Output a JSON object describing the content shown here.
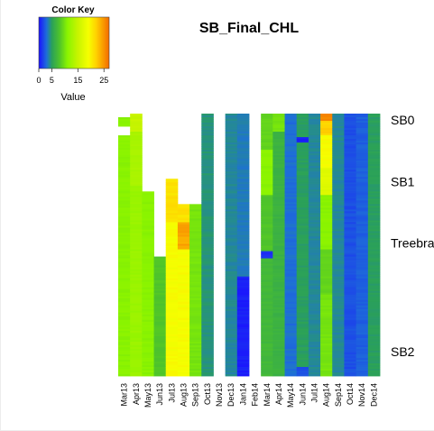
{
  "chart_data": {
    "type": "heatmap",
    "title": "SB_Final_CHL",
    "color_key": {
      "title": "Color Key",
      "xlabel": "Value",
      "ticks": [
        0,
        5,
        15,
        25
      ],
      "range": [
        0,
        27
      ],
      "gradient": [
        {
          "v": 0,
          "c": "#1a10ff"
        },
        {
          "v": 3,
          "c": "#1e6fd8"
        },
        {
          "v": 5,
          "c": "#2aa05a"
        },
        {
          "v": 8,
          "c": "#4fc42a"
        },
        {
          "v": 11,
          "c": "#8af400"
        },
        {
          "v": 15,
          "c": "#c8f400"
        },
        {
          "v": 19,
          "c": "#f6ff00"
        },
        {
          "v": 22,
          "c": "#ffd200"
        },
        {
          "v": 27,
          "c": "#f36a00"
        }
      ]
    },
    "columns": [
      "Mar13",
      "Apr13",
      "May13",
      "Jun13",
      "Jul13",
      "Aug13",
      "Sep13",
      "Oct13",
      "Nov13",
      "Dec13",
      "Jan14",
      "Feb14",
      "Mar14",
      "Apr14",
      "May14",
      "Jun14",
      "Jul14",
      "Aug14",
      "Sep14",
      "Oct14",
      "Nov14",
      "Dec14"
    ],
    "row_labels": [
      {
        "label": "SB0",
        "row": 3
      },
      {
        "label": "SB1",
        "row": 37
      },
      {
        "label": "Treebrai",
        "row": 71
      },
      {
        "label": "SB2",
        "row": 131
      }
    ],
    "n_rows": 145,
    "profiles": [
      {
        "column": "Mar13",
        "base": 11,
        "missing": [
          [
            0,
            2
          ],
          [
            7,
            12
          ]
        ],
        "segments": [
          [
            0,
            145,
            11
          ]
        ]
      },
      {
        "column": "Apr13",
        "base": 13,
        "missing": [],
        "segments": [
          [
            0,
            10,
            15
          ],
          [
            10,
            40,
            13
          ],
          [
            40,
            145,
            12
          ]
        ]
      },
      {
        "column": "May13",
        "base": 11,
        "missing": [
          [
            0,
            43
          ]
        ],
        "segments": [
          [
            43,
            145,
            11
          ]
        ]
      },
      {
        "column": "Jun13",
        "base": 8,
        "missing": [
          [
            0,
            79
          ]
        ],
        "segments": [
          [
            79,
            145,
            8
          ]
        ]
      },
      {
        "column": "Jul13",
        "base": 19,
        "missing": [
          [
            0,
            36
          ]
        ],
        "segments": [
          [
            36,
            60,
            21
          ],
          [
            60,
            145,
            19
          ]
        ]
      },
      {
        "column": "Aug13",
        "base": 20,
        "missing": [
          [
            0,
            50
          ]
        ],
        "segments": [
          [
            50,
            60,
            21
          ],
          [
            60,
            75,
            24
          ],
          [
            75,
            145,
            19
          ]
        ]
      },
      {
        "column": "Sep13",
        "base": 10,
        "missing": [
          [
            0,
            50
          ]
        ],
        "segments": [
          [
            50,
            145,
            10
          ]
        ]
      },
      {
        "column": "Oct13",
        "base": 4.5,
        "missing": [],
        "segments": [
          [
            0,
            145,
            4.5
          ]
        ]
      },
      {
        "column": "Nov13",
        "base": null,
        "missing": [
          [
            0,
            145
          ]
        ],
        "segments": []
      },
      {
        "column": "Dec13",
        "base": 4,
        "missing": [],
        "segments": [
          [
            0,
            145,
            4
          ]
        ]
      },
      {
        "column": "Jan14",
        "base": 3,
        "missing": [],
        "segments": [
          [
            0,
            90,
            3.5
          ],
          [
            90,
            145,
            0.5
          ]
        ]
      },
      {
        "column": "Feb14",
        "base": null,
        "missing": [
          [
            0,
            145
          ]
        ],
        "segments": []
      },
      {
        "column": "Mar14",
        "base": 9,
        "missing": [],
        "segments": [
          [
            0,
            20,
            9
          ],
          [
            20,
            45,
            11
          ],
          [
            45,
            76,
            8
          ],
          [
            76,
            80,
            1
          ],
          [
            80,
            145,
            7
          ]
        ]
      },
      {
        "column": "Apr14",
        "base": 7,
        "missing": [],
        "segments": [
          [
            0,
            10,
            10
          ],
          [
            10,
            145,
            6.5
          ]
        ]
      },
      {
        "column": "May14",
        "base": 3,
        "missing": [],
        "segments": [
          [
            0,
            145,
            3
          ]
        ]
      },
      {
        "column": "Jun14",
        "base": 5,
        "missing": [],
        "segments": [
          [
            0,
            13,
            5
          ],
          [
            13,
            16,
            0.5
          ],
          [
            16,
            140,
            5
          ],
          [
            140,
            145,
            2
          ]
        ]
      },
      {
        "column": "Jul14",
        "base": 4,
        "missing": [],
        "segments": [
          [
            0,
            145,
            4
          ]
        ]
      },
      {
        "column": "Aug14",
        "base": 15,
        "missing": [],
        "segments": [
          [
            0,
            4,
            26
          ],
          [
            4,
            12,
            22
          ],
          [
            12,
            30,
            19
          ],
          [
            30,
            45,
            17
          ],
          [
            45,
            75,
            11
          ],
          [
            75,
            100,
            9
          ],
          [
            100,
            145,
            10
          ]
        ]
      },
      {
        "column": "Sep14",
        "base": 4,
        "missing": [],
        "segments": [
          [
            0,
            145,
            4
          ]
        ]
      },
      {
        "column": "Oct14",
        "base": 2,
        "missing": [],
        "segments": [
          [
            0,
            145,
            2
          ]
        ]
      },
      {
        "column": "Nov14",
        "base": 2.5,
        "missing": [],
        "segments": [
          [
            0,
            145,
            2.5
          ]
        ]
      },
      {
        "column": "Dec14",
        "base": 5,
        "missing": [],
        "segments": [
          [
            0,
            145,
            5
          ]
        ]
      }
    ]
  }
}
